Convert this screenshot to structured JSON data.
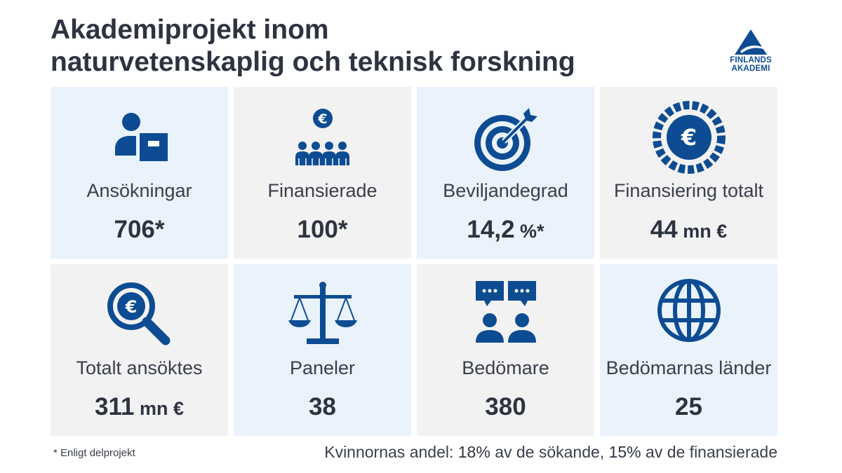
{
  "header": {
    "title_line1": "Akademiprojekt inom",
    "title_line2": "naturvetenskaplig och teknisk forskning"
  },
  "logo": {
    "line1": "FINLANDS",
    "line2": "AKADEMI",
    "color": "#0d4c92"
  },
  "colors": {
    "icon": "#0d4c92",
    "tile_blue": "#eaf2fc",
    "tile_gray": "#f2f2f2",
    "text": "#2e3340"
  },
  "tiles": [
    {
      "icon": "person-with-document-icon",
      "label": "Ansökningar",
      "value": "706*",
      "unit": ""
    },
    {
      "icon": "group-with-euro-icon",
      "label": "Finansierade",
      "value": "100*",
      "unit": ""
    },
    {
      "icon": "target-with-arrow-icon",
      "label": "Beviljandegrad",
      "value": "14,2",
      "unit": " %*"
    },
    {
      "icon": "euro-coin-icon",
      "label": "Finansiering totalt",
      "value": "44",
      "unit": " mn €"
    },
    {
      "icon": "magnifier-euro-icon",
      "label": "Totalt ansöktes",
      "value": "311",
      "unit": " mn €"
    },
    {
      "icon": "balance-scale-icon",
      "label": "Paneler",
      "value": "38",
      "unit": ""
    },
    {
      "icon": "people-speech-bubbles-icon",
      "label": "Bedömare",
      "value": "380",
      "unit": ""
    },
    {
      "icon": "globe-icon",
      "label": "Bedömarnas länder",
      "value": "25",
      "unit": ""
    }
  ],
  "footer": {
    "footnote": "* Enligt delprojekt",
    "women_prefix": "Kvinnornas andel:",
    "women_applicants_value": "18%",
    "women_applicants_text": "av de sökande,",
    "women_funded_value": "15%",
    "women_funded_text": "av de finansierade"
  }
}
